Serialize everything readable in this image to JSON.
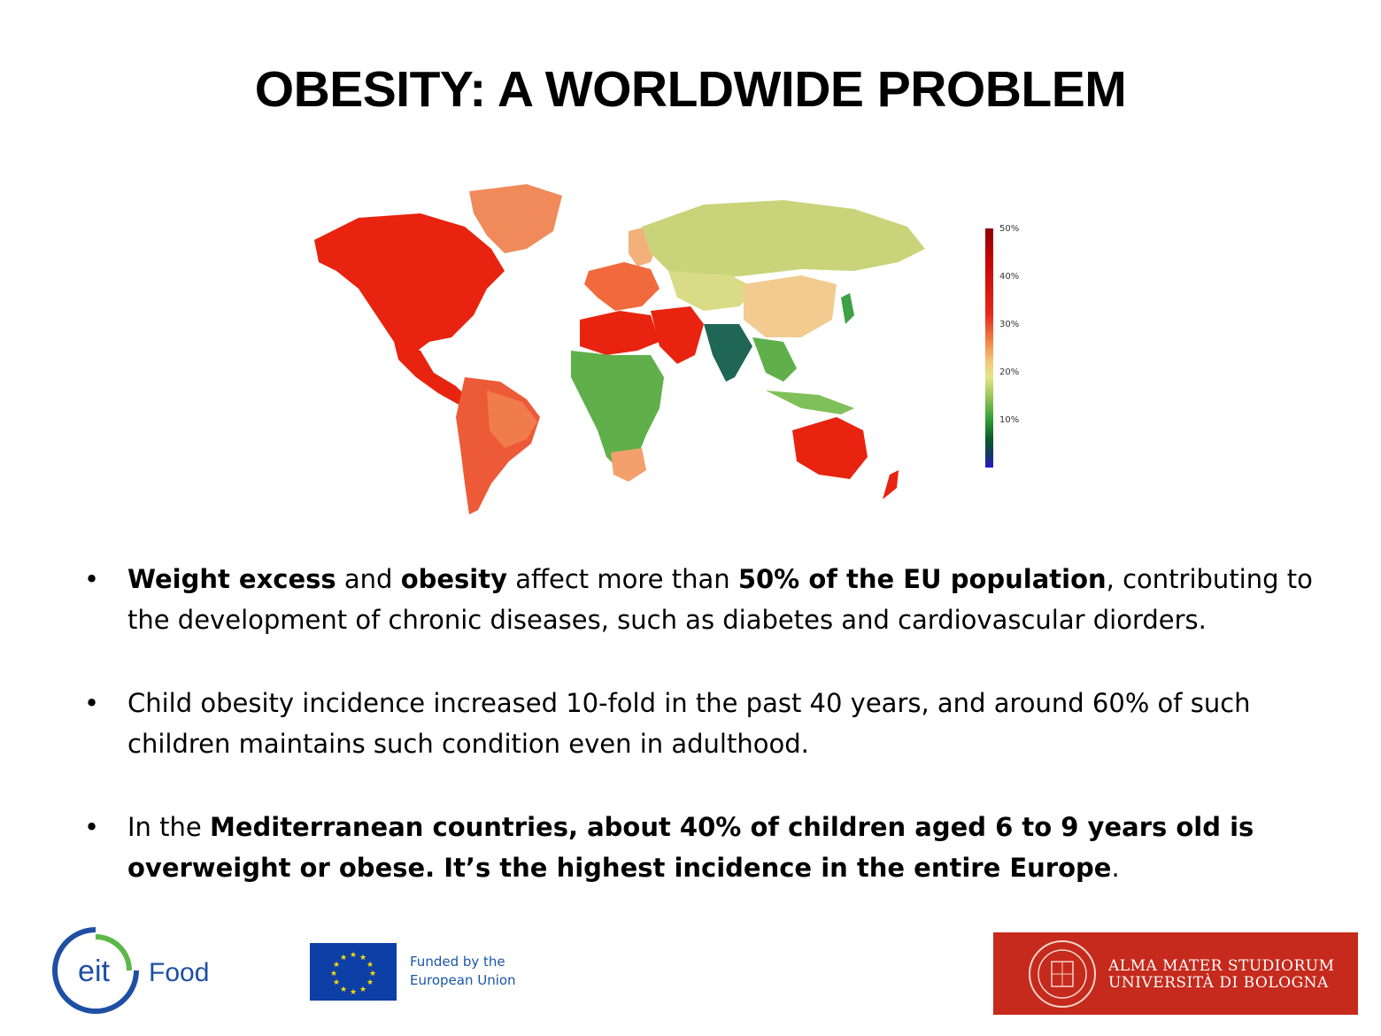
{
  "slide": {
    "title": "OBESITY: A WORLDWIDE PROBLEM"
  },
  "map_legend": {
    "labels": [
      "50%",
      "40%",
      "30%",
      "20%",
      "10%"
    ],
    "color_scale": [
      "#8e0000",
      "#e52a1c",
      "#f08a4a",
      "#e6e38a",
      "#2f9e35",
      "#12376b",
      "#2a17c9"
    ]
  },
  "bullets": [
    {
      "segments": [
        {
          "text": "Weight excess",
          "bold": true
        },
        {
          "text": " and ",
          "bold": false
        },
        {
          "text": "obesity",
          "bold": true
        },
        {
          "text": " affect more than ",
          "bold": false
        },
        {
          "text": "50% of the EU population",
          "bold": true
        },
        {
          "text": ", contributing to the development of chronic diseases, such as diabetes and cardiovascular diorders.",
          "bold": false
        }
      ]
    },
    {
      "segments": [
        {
          "text": "Child obesity incidence increased 10-fold in the past 40 years, and around 60% of such children maintains such condition even in adulthood.",
          "bold": false
        }
      ]
    },
    {
      "segments": [
        {
          "text": "In the ",
          "bold": false
        },
        {
          "text": "Mediterranean countries, about 40% of children aged 6 to 9 years old is overweight or obese. It’s the highest incidence in the entire Europe",
          "bold": true
        },
        {
          "text": ".",
          "bold": false
        }
      ]
    }
  ],
  "footer": {
    "eit_logo_text": "eit",
    "eit_food_text": "Food",
    "eu_funding_line1": "Funded by the",
    "eu_funding_line2": "European Union",
    "unibo_line1": "ALMA MATER STUDIORUM",
    "unibo_line2": "UNIVERSITÀ DI BOLOGNA",
    "unibo_seal_text": "ALMA MATER STUDIORUM A.D. 1088"
  }
}
